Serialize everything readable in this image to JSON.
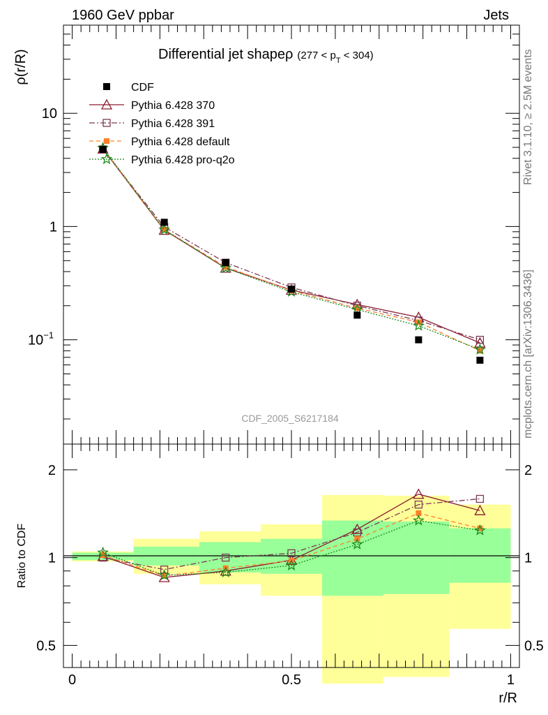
{
  "header": {
    "left": "1960 GeV ppbar",
    "right": "Jets"
  },
  "side_labels": {
    "rivet": "Rivet 3.1.10, ≥ 2.5M events",
    "mcplots": "mcplots.cern.ch [arXiv:1306.3436]"
  },
  "chart_data": [
    {
      "type": "line",
      "title_main": "Differential jet shapeρ",
      "title_range": "(277 < p",
      "title_sub": "T",
      "title_end": " < 304)",
      "ylabel": "ρ(r/R)",
      "xlabel": "",
      "watermark": "CDF_2005_S6217184",
      "yscale": "log",
      "xlim": [
        -0.02,
        1.02
      ],
      "ylim": [
        0.012,
        60
      ],
      "yticks": [
        {
          "value": 10,
          "label": "10"
        },
        {
          "value": 1,
          "label": "1"
        },
        {
          "value": 0.1,
          "label": "10",
          "sup": "−1"
        }
      ],
      "x": [
        0.07,
        0.21,
        0.35,
        0.5,
        0.65,
        0.79,
        0.93
      ],
      "data": {
        "name": "CDF",
        "color": "#000000",
        "values": [
          4.8,
          1.09,
          0.48,
          0.28,
          0.165,
          0.1,
          0.066
        ]
      },
      "series": [
        {
          "name": "Pythia 6.428 370",
          "color": "#8b1a2e",
          "marker": "triangle",
          "dash": "",
          "values": [
            4.85,
            0.93,
            0.43,
            0.275,
            0.205,
            0.158,
            0.094
          ]
        },
        {
          "name": "Pythia 6.428 391",
          "color": "#7a3a55",
          "marker": "square-open",
          "dash": "8,3,2,3",
          "values": [
            4.8,
            0.99,
            0.48,
            0.29,
            0.2,
            0.148,
            0.1
          ]
        },
        {
          "name": "Pythia 6.428 default",
          "color": "#ff7f2a",
          "marker": "square-filled",
          "dash": "6,4",
          "values": [
            4.9,
            0.94,
            0.44,
            0.272,
            0.19,
            0.143,
            0.08
          ]
        },
        {
          "name": "Pythia 6.428 pro-q2o",
          "color": "#1a8a1a",
          "marker": "star",
          "dash": "2,2",
          "values": [
            4.95,
            0.94,
            0.43,
            0.265,
            0.185,
            0.133,
            0.082
          ]
        }
      ]
    },
    {
      "type": "line",
      "ylabel": "Ratio to CDF",
      "xlabel": "r/R",
      "yscale": "log",
      "xlim": [
        -0.02,
        1.02
      ],
      "ylim": [
        0.42,
        2.45
      ],
      "yticks": [
        {
          "value": 2,
          "label": "2"
        },
        {
          "value": 1,
          "label": "1"
        },
        {
          "value": 0.5,
          "label": "0.5"
        }
      ],
      "xticks": [
        {
          "value": 0,
          "label": "0"
        },
        {
          "value": 0.5,
          "label": "0.5"
        },
        {
          "value": 1,
          "label": "1"
        }
      ],
      "bands": [
        {
          "x0": 0.0,
          "x1": 0.14,
          "outer": [
            0.97,
            1.05
          ],
          "inner": [
            0.98,
            1.04
          ]
        },
        {
          "x0": 0.14,
          "x1": 0.29,
          "outer": [
            0.88,
            1.16
          ],
          "inner": [
            0.94,
            1.09
          ]
        },
        {
          "x0": 0.29,
          "x1": 0.43,
          "outer": [
            0.81,
            1.23
          ],
          "inner": [
            0.89,
            1.13
          ]
        },
        {
          "x0": 0.43,
          "x1": 0.57,
          "outer": [
            0.74,
            1.3
          ],
          "inner": [
            0.88,
            1.16
          ]
        },
        {
          "x0": 0.57,
          "x1": 0.71,
          "outer": [
            0.37,
            1.64
          ],
          "inner": [
            0.74,
            1.34
          ]
        },
        {
          "x0": 0.71,
          "x1": 0.86,
          "outer": [
            0.39,
            1.63
          ],
          "inner": [
            0.75,
            1.33
          ]
        },
        {
          "x0": 0.86,
          "x1": 1.0,
          "outer": [
            0.57,
            1.52
          ],
          "inner": [
            0.82,
            1.26
          ]
        }
      ],
      "series": [
        {
          "name": "Pythia 6.428 370",
          "values": [
            1.01,
            0.855,
            0.9,
            0.98,
            1.25,
            1.65,
            1.45
          ]
        },
        {
          "name": "Pythia 6.428 391",
          "values": [
            1.0,
            0.91,
            1.0,
            1.035,
            1.22,
            1.52,
            1.59
          ]
        },
        {
          "name": "Pythia 6.428 default",
          "values": [
            1.02,
            0.865,
            0.92,
            0.975,
            1.16,
            1.42,
            1.26
          ]
        },
        {
          "name": "Pythia 6.428 pro-q2o",
          "values": [
            1.04,
            0.87,
            0.89,
            0.94,
            1.11,
            1.34,
            1.24
          ]
        }
      ]
    }
  ]
}
